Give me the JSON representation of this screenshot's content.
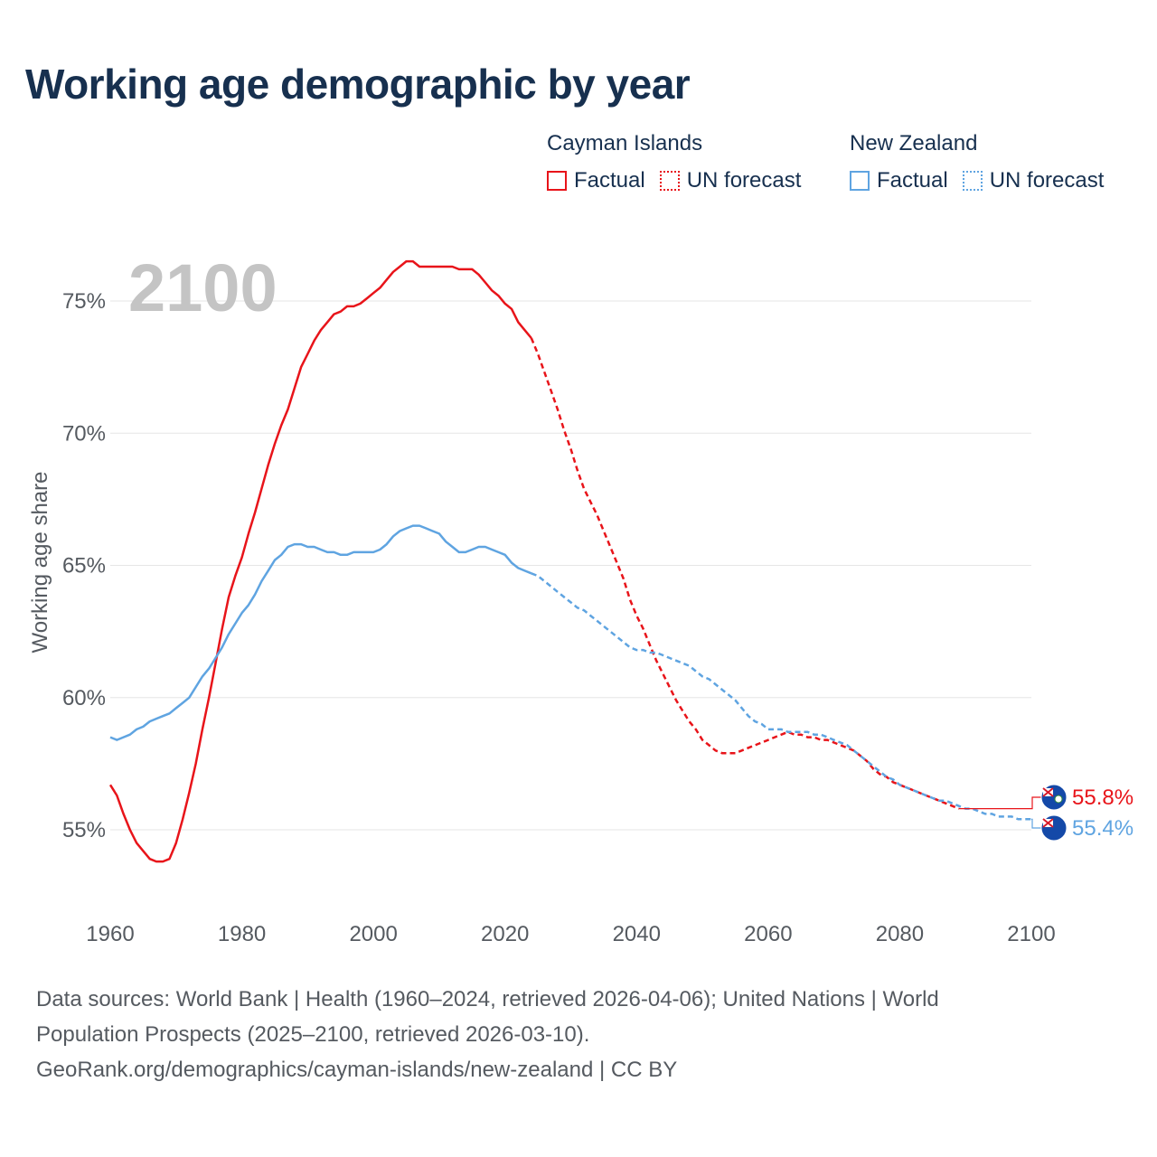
{
  "title": "Working age demographic by year",
  "legend": [
    {
      "name": "Cayman Islands",
      "factual_label": "Factual",
      "forecast_label": "UN forecast",
      "color": "#e8141a"
    },
    {
      "name": "New Zealand",
      "factual_label": "Factual",
      "forecast_label": "UN forecast",
      "color": "#5fa4e1"
    }
  ],
  "source": {
    "line1": "Data sources: World Bank | Health (1960–2024, retrieved 2026-04-06); United Nations | World",
    "line2": "Population Prospects (2025–2100, retrieved 2026-03-10).",
    "line3": "GeoRank.org/demographics/cayman-islands/new-zealand | CC BY"
  },
  "chart_data": {
    "type": "line",
    "title": "Working age demographic by year",
    "year_watermark": "2100",
    "xlabel": "",
    "ylabel": "Working age share",
    "xlim": [
      1960,
      2100
    ],
    "ylim": [
      52.5,
      78
    ],
    "x_ticks": [
      1960,
      1980,
      2000,
      2020,
      2040,
      2060,
      2080,
      2100
    ],
    "y_ticks": [
      55,
      60,
      65,
      70,
      75
    ],
    "y_tick_labels": [
      "55%",
      "60%",
      "65%",
      "70%",
      "75%"
    ],
    "grid": "horizontal",
    "factual_end_year": 2024,
    "series": [
      {
        "name": "Cayman Islands",
        "color": "#e8141a",
        "end_label": "55.8%",
        "points": [
          [
            1960,
            56.7
          ],
          [
            1961,
            56.3
          ],
          [
            1962,
            55.6
          ],
          [
            1963,
            55.0
          ],
          [
            1964,
            54.5
          ],
          [
            1965,
            54.2
          ],
          [
            1966,
            53.9
          ],
          [
            1967,
            53.8
          ],
          [
            1968,
            53.8
          ],
          [
            1969,
            53.9
          ],
          [
            1970,
            54.5
          ],
          [
            1971,
            55.4
          ],
          [
            1972,
            56.4
          ],
          [
            1973,
            57.5
          ],
          [
            1974,
            58.8
          ],
          [
            1975,
            60.0
          ],
          [
            1976,
            61.3
          ],
          [
            1977,
            62.6
          ],
          [
            1978,
            63.8
          ],
          [
            1979,
            64.6
          ],
          [
            1980,
            65.3
          ],
          [
            1981,
            66.2
          ],
          [
            1982,
            67.0
          ],
          [
            1983,
            67.9
          ],
          [
            1984,
            68.8
          ],
          [
            1985,
            69.6
          ],
          [
            1986,
            70.3
          ],
          [
            1987,
            70.9
          ],
          [
            1988,
            71.7
          ],
          [
            1989,
            72.5
          ],
          [
            1990,
            73.0
          ],
          [
            1991,
            73.5
          ],
          [
            1992,
            73.9
          ],
          [
            1993,
            74.2
          ],
          [
            1994,
            74.5
          ],
          [
            1995,
            74.6
          ],
          [
            1996,
            74.8
          ],
          [
            1997,
            74.8
          ],
          [
            1998,
            74.9
          ],
          [
            1999,
            75.1
          ],
          [
            2000,
            75.3
          ],
          [
            2001,
            75.5
          ],
          [
            2002,
            75.8
          ],
          [
            2003,
            76.1
          ],
          [
            2004,
            76.3
          ],
          [
            2005,
            76.5
          ],
          [
            2006,
            76.5
          ],
          [
            2007,
            76.3
          ],
          [
            2008,
            76.3
          ],
          [
            2009,
            76.3
          ],
          [
            2010,
            76.3
          ],
          [
            2011,
            76.3
          ],
          [
            2012,
            76.3
          ],
          [
            2013,
            76.2
          ],
          [
            2014,
            76.2
          ],
          [
            2015,
            76.2
          ],
          [
            2016,
            76.0
          ],
          [
            2017,
            75.7
          ],
          [
            2018,
            75.4
          ],
          [
            2019,
            75.2
          ],
          [
            2020,
            74.9
          ],
          [
            2021,
            74.7
          ],
          [
            2022,
            74.2
          ],
          [
            2023,
            73.9
          ],
          [
            2024,
            73.6
          ],
          [
            2025,
            73.0
          ],
          [
            2026,
            72.3
          ],
          [
            2027,
            71.6
          ],
          [
            2028,
            70.9
          ],
          [
            2029,
            70.1
          ],
          [
            2030,
            69.4
          ],
          [
            2031,
            68.6
          ],
          [
            2032,
            67.9
          ],
          [
            2033,
            67.4
          ],
          [
            2034,
            66.9
          ],
          [
            2035,
            66.3
          ],
          [
            2036,
            65.7
          ],
          [
            2037,
            65.1
          ],
          [
            2038,
            64.5
          ],
          [
            2039,
            63.7
          ],
          [
            2040,
            63.1
          ],
          [
            2041,
            62.6
          ],
          [
            2042,
            62.0
          ],
          [
            2043,
            61.4
          ],
          [
            2044,
            60.9
          ],
          [
            2045,
            60.4
          ],
          [
            2046,
            59.9
          ],
          [
            2047,
            59.5
          ],
          [
            2048,
            59.1
          ],
          [
            2049,
            58.8
          ],
          [
            2050,
            58.4
          ],
          [
            2051,
            58.2
          ],
          [
            2052,
            58.0
          ],
          [
            2053,
            57.9
          ],
          [
            2054,
            57.9
          ],
          [
            2055,
            57.9
          ],
          [
            2056,
            58.0
          ],
          [
            2057,
            58.1
          ],
          [
            2058,
            58.2
          ],
          [
            2059,
            58.3
          ],
          [
            2060,
            58.4
          ],
          [
            2061,
            58.5
          ],
          [
            2062,
            58.6
          ],
          [
            2063,
            58.7
          ],
          [
            2064,
            58.6
          ],
          [
            2065,
            58.6
          ],
          [
            2066,
            58.5
          ],
          [
            2067,
            58.5
          ],
          [
            2068,
            58.4
          ],
          [
            2069,
            58.4
          ],
          [
            2070,
            58.3
          ],
          [
            2071,
            58.2
          ],
          [
            2072,
            58.1
          ],
          [
            2073,
            58.0
          ],
          [
            2074,
            57.8
          ],
          [
            2075,
            57.6
          ],
          [
            2076,
            57.3
          ],
          [
            2077,
            57.1
          ],
          [
            2078,
            57.0
          ],
          [
            2079,
            56.8
          ],
          [
            2080,
            56.7
          ],
          [
            2081,
            56.6
          ],
          [
            2082,
            56.5
          ],
          [
            2083,
            56.4
          ],
          [
            2084,
            56.3
          ],
          [
            2085,
            56.2
          ],
          [
            2086,
            56.1
          ],
          [
            2087,
            56.0
          ],
          [
            2088,
            55.9
          ],
          [
            2089,
            55.8
          ]
        ]
      },
      {
        "name": "New Zealand",
        "color": "#5fa4e1",
        "end_label": "55.4%",
        "points": [
          [
            1960,
            58.5
          ],
          [
            1961,
            58.4
          ],
          [
            1962,
            58.5
          ],
          [
            1963,
            58.6
          ],
          [
            1964,
            58.8
          ],
          [
            1965,
            58.9
          ],
          [
            1966,
            59.1
          ],
          [
            1967,
            59.2
          ],
          [
            1968,
            59.3
          ],
          [
            1969,
            59.4
          ],
          [
            1970,
            59.6
          ],
          [
            1971,
            59.8
          ],
          [
            1972,
            60.0
          ],
          [
            1973,
            60.4
          ],
          [
            1974,
            60.8
          ],
          [
            1975,
            61.1
          ],
          [
            1976,
            61.5
          ],
          [
            1977,
            61.9
          ],
          [
            1978,
            62.4
          ],
          [
            1979,
            62.8
          ],
          [
            1980,
            63.2
          ],
          [
            1981,
            63.5
          ],
          [
            1982,
            63.9
          ],
          [
            1983,
            64.4
          ],
          [
            1984,
            64.8
          ],
          [
            1985,
            65.2
          ],
          [
            1986,
            65.4
          ],
          [
            1987,
            65.7
          ],
          [
            1988,
            65.8
          ],
          [
            1989,
            65.8
          ],
          [
            1990,
            65.7
          ],
          [
            1991,
            65.7
          ],
          [
            1992,
            65.6
          ],
          [
            1993,
            65.5
          ],
          [
            1994,
            65.5
          ],
          [
            1995,
            65.4
          ],
          [
            1996,
            65.4
          ],
          [
            1997,
            65.5
          ],
          [
            1998,
            65.5
          ],
          [
            1999,
            65.5
          ],
          [
            2000,
            65.5
          ],
          [
            2001,
            65.6
          ],
          [
            2002,
            65.8
          ],
          [
            2003,
            66.1
          ],
          [
            2004,
            66.3
          ],
          [
            2005,
            66.4
          ],
          [
            2006,
            66.5
          ],
          [
            2007,
            66.5
          ],
          [
            2008,
            66.4
          ],
          [
            2009,
            66.3
          ],
          [
            2010,
            66.2
          ],
          [
            2011,
            65.9
          ],
          [
            2012,
            65.7
          ],
          [
            2013,
            65.5
          ],
          [
            2014,
            65.5
          ],
          [
            2015,
            65.6
          ],
          [
            2016,
            65.7
          ],
          [
            2017,
            65.7
          ],
          [
            2018,
            65.6
          ],
          [
            2019,
            65.5
          ],
          [
            2020,
            65.4
          ],
          [
            2021,
            65.1
          ],
          [
            2022,
            64.9
          ],
          [
            2023,
            64.8
          ],
          [
            2024,
            64.7
          ],
          [
            2025,
            64.6
          ],
          [
            2026,
            64.4
          ],
          [
            2027,
            64.2
          ],
          [
            2028,
            64.0
          ],
          [
            2029,
            63.8
          ],
          [
            2030,
            63.6
          ],
          [
            2031,
            63.4
          ],
          [
            2032,
            63.3
          ],
          [
            2033,
            63.1
          ],
          [
            2034,
            62.9
          ],
          [
            2035,
            62.7
          ],
          [
            2036,
            62.5
          ],
          [
            2037,
            62.3
          ],
          [
            2038,
            62.1
          ],
          [
            2039,
            61.9
          ],
          [
            2040,
            61.8
          ],
          [
            2041,
            61.8
          ],
          [
            2042,
            61.7
          ],
          [
            2043,
            61.7
          ],
          [
            2044,
            61.6
          ],
          [
            2045,
            61.5
          ],
          [
            2046,
            61.4
          ],
          [
            2047,
            61.3
          ],
          [
            2048,
            61.2
          ],
          [
            2049,
            61.0
          ],
          [
            2050,
            60.8
          ],
          [
            2051,
            60.7
          ],
          [
            2052,
            60.5
          ],
          [
            2053,
            60.3
          ],
          [
            2054,
            60.1
          ],
          [
            2055,
            59.9
          ],
          [
            2056,
            59.6
          ],
          [
            2057,
            59.3
          ],
          [
            2058,
            59.1
          ],
          [
            2059,
            59.0
          ],
          [
            2060,
            58.8
          ],
          [
            2061,
            58.8
          ],
          [
            2062,
            58.8
          ],
          [
            2063,
            58.7
          ],
          [
            2064,
            58.7
          ],
          [
            2065,
            58.7
          ],
          [
            2066,
            58.7
          ],
          [
            2067,
            58.6
          ],
          [
            2068,
            58.6
          ],
          [
            2069,
            58.5
          ],
          [
            2070,
            58.4
          ],
          [
            2071,
            58.3
          ],
          [
            2072,
            58.2
          ],
          [
            2073,
            58.0
          ],
          [
            2074,
            57.8
          ],
          [
            2075,
            57.6
          ],
          [
            2076,
            57.4
          ],
          [
            2077,
            57.2
          ],
          [
            2078,
            57.0
          ],
          [
            2079,
            56.9
          ],
          [
            2080,
            56.7
          ],
          [
            2081,
            56.6
          ],
          [
            2082,
            56.5
          ],
          [
            2083,
            56.4
          ],
          [
            2084,
            56.3
          ],
          [
            2085,
            56.2
          ],
          [
            2086,
            56.1
          ],
          [
            2087,
            56.1
          ],
          [
            2088,
            56.0
          ],
          [
            2089,
            55.9
          ],
          [
            2090,
            55.8
          ],
          [
            2091,
            55.8
          ],
          [
            2092,
            55.7
          ],
          [
            2093,
            55.6
          ],
          [
            2094,
            55.6
          ],
          [
            2095,
            55.5
          ],
          [
            2096,
            55.5
          ],
          [
            2097,
            55.5
          ],
          [
            2098,
            55.4
          ],
          [
            2099,
            55.4
          ],
          [
            2100,
            55.4
          ]
        ]
      }
    ]
  }
}
